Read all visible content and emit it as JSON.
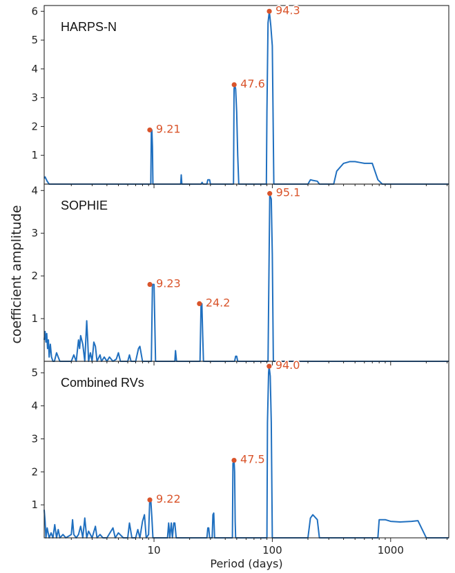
{
  "figure": {
    "ylabel": "coefficient amplitude",
    "xlabel": "Period (days)",
    "x_scale": "log",
    "x_ticks": [
      10,
      100,
      1000
    ],
    "x_tick_labels": [
      "10",
      "100",
      "1000"
    ],
    "xlim": [
      1.18,
      3100
    ],
    "line_color": "#1f6fbf",
    "marker_color": "#d9542b"
  },
  "chart_data": [
    {
      "type": "line",
      "title": "HARPS-N",
      "ylim": [
        0,
        6.2
      ],
      "yticks": [
        1,
        2,
        3,
        4,
        5,
        6
      ],
      "series": [
        {
          "x": [
            1.18,
            1.2,
            1.25,
            1.3,
            9.4,
            9.5,
            9.6,
            9.7,
            9.8,
            16.8,
            17,
            17.2,
            25,
            25.5,
            26,
            28,
            28.5,
            29.5,
            30,
            47,
            47.5,
            48,
            49,
            50,
            51,
            52,
            89,
            90,
            92,
            94.3,
            97,
            100,
            103,
            200,
            210,
            220,
            240,
            250,
            330,
            350,
            400,
            450,
            500,
            550,
            600,
            700,
            780,
            850,
            3100
          ],
          "y": [
            0.2,
            0.25,
            0.1,
            0,
            0,
            1.88,
            1.88,
            1.3,
            0,
            0,
            0.32,
            0,
            0,
            0.06,
            0,
            0,
            0.15,
            0.15,
            0,
            0,
            3.3,
            3.45,
            3.3,
            2.5,
            1.0,
            0,
            0,
            2.5,
            5.6,
            6.0,
            5.5,
            4.8,
            0,
            0,
            0.15,
            0.13,
            0.1,
            0,
            0,
            0.45,
            0.72,
            0.78,
            0.78,
            0.75,
            0.72,
            0.72,
            0.15,
            0,
            0
          ]
        }
      ],
      "peaks": [
        {
          "x": 9.21,
          "y": 1.88,
          "label": "9.21"
        },
        {
          "x": 47.6,
          "y": 3.45,
          "label": "47.6"
        },
        {
          "x": 94.3,
          "y": 6.0,
          "label": "94.3"
        }
      ]
    },
    {
      "type": "line",
      "title": "SOPHIE",
      "ylim": [
        0,
        4.15
      ],
      "yticks": [
        1,
        2,
        3,
        4
      ],
      "series": [
        {
          "x": [
            1.18,
            1.2,
            1.22,
            1.24,
            1.26,
            1.28,
            1.3,
            1.33,
            1.36,
            1.4,
            1.44,
            1.5,
            1.6,
            1.65,
            2.0,
            2.1,
            2.2,
            2.3,
            2.35,
            2.4,
            2.5,
            2.6,
            2.7,
            2.75,
            2.8,
            2.9,
            3.0,
            3.1,
            3.2,
            3.3,
            3.5,
            3.6,
            3.8,
            4.0,
            4.2,
            4.5,
            4.8,
            5.0,
            5.2,
            5.4,
            6.0,
            6.2,
            6.4,
            7.0,
            7.4,
            7.6,
            8.0,
            9.0,
            9.5,
            9.7,
            10.0,
            10.3,
            15,
            15.2,
            15.5,
            24.5,
            25,
            25.4,
            25.8,
            26.2,
            48,
            49,
            50,
            51,
            92,
            95.1,
            98,
            100,
            102,
            3100
          ],
          "y": [
            0.5,
            0.7,
            0.45,
            0.65,
            0.3,
            0.5,
            0.1,
            0.4,
            0.1,
            0,
            0,
            0.2,
            0,
            0,
            0,
            0.15,
            0,
            0.5,
            0.3,
            0.6,
            0.4,
            0,
            0.95,
            0.5,
            0,
            0.2,
            0,
            0.45,
            0.35,
            0,
            0.15,
            0,
            0.1,
            0,
            0.1,
            0,
            0.05,
            0.2,
            0,
            0,
            0,
            0.15,
            0,
            0,
            0.3,
            0.35,
            0,
            0,
            0,
            1.8,
            1.8,
            0,
            0,
            0.25,
            0,
            0,
            1.35,
            1.35,
            0.6,
            0,
            0,
            0.12,
            0.12,
            0,
            0,
            3.9,
            3.8,
            2.5,
            0,
            0
          ]
        }
      ],
      "peaks": [
        {
          "x": 9.23,
          "y": 1.8,
          "label": "9.23"
        },
        {
          "x": 24.2,
          "y": 1.35,
          "label": "24.2"
        },
        {
          "x": 95.1,
          "y": 3.93,
          "label": "95.1"
        }
      ]
    },
    {
      "type": "line",
      "title": "Combined RVs",
      "ylim": [
        0,
        5.35
      ],
      "yticks": [
        1,
        2,
        3,
        4,
        5
      ],
      "series": [
        {
          "x": [
            1.18,
            1.2,
            1.22,
            1.25,
            1.3,
            1.35,
            1.4,
            1.45,
            1.5,
            1.55,
            1.6,
            1.7,
            1.8,
            2.0,
            2.05,
            2.1,
            2.2,
            2.3,
            2.4,
            2.5,
            2.6,
            2.7,
            2.8,
            3.0,
            3.2,
            3.3,
            3.5,
            3.7,
            4.0,
            4.5,
            4.7,
            5.0,
            5.5,
            6.0,
            6.2,
            6.5,
            7.0,
            7.3,
            7.6,
            8.0,
            8.3,
            8.6,
            9.0,
            9.2,
            9.4,
            9.6,
            9.8,
            13,
            13.3,
            13.6,
            14,
            14.3,
            14.7,
            15,
            15.4,
            15.8,
            16,
            28,
            28.5,
            29,
            29.5,
            31,
            31.5,
            32,
            32.5,
            46,
            46.5,
            47.5,
            48,
            48.5,
            49,
            90,
            91,
            93,
            94,
            96,
            98,
            100,
            200,
            210,
            220,
            240,
            250,
            780,
            800,
            900,
            1000,
            1200,
            1500,
            1700,
            2000,
            3100
          ],
          "y": [
            0.85,
            0.5,
            0,
            0.3,
            0,
            0.15,
            0,
            0.4,
            0,
            0.25,
            0,
            0.1,
            0,
            0.1,
            0.55,
            0.1,
            0,
            0.1,
            0.35,
            0,
            0.6,
            0,
            0.2,
            0,
            0.35,
            0,
            0.1,
            0,
            0,
            0.3,
            0,
            0.15,
            0,
            0,
            0.45,
            0,
            0,
            0.25,
            0,
            0.5,
            0.7,
            0,
            0.1,
            1.1,
            1.15,
            0.6,
            0,
            0,
            0.45,
            0,
            0.45,
            0,
            0.45,
            0.45,
            0,
            0,
            0,
            0,
            0.3,
            0.3,
            0,
            0,
            0.7,
            0.75,
            0,
            0,
            2.25,
            2.35,
            2.0,
            0.5,
            0,
            0,
            3.5,
            5.0,
            5.2,
            4.9,
            3.5,
            0,
            0,
            0.6,
            0.7,
            0.55,
            0,
            0,
            0.55,
            0.55,
            0.5,
            0.48,
            0.5,
            0.52,
            0,
            0
          ]
        }
      ],
      "peaks": [
        {
          "x": 9.22,
          "y": 1.15,
          "label": "9.22"
        },
        {
          "x": 47.5,
          "y": 2.35,
          "label": "47.5"
        },
        {
          "x": 94.0,
          "y": 5.2,
          "label": "94.0"
        }
      ]
    }
  ]
}
